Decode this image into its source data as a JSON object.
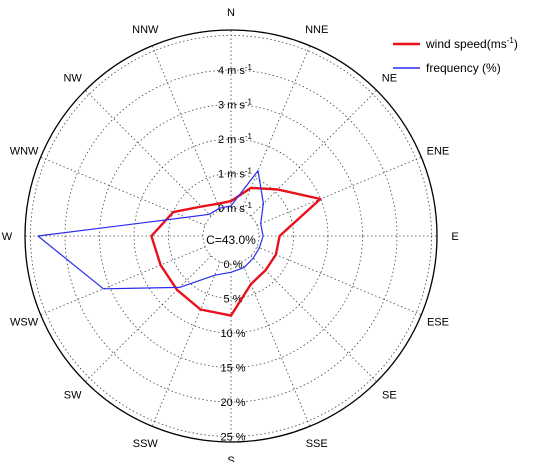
{
  "chart_data": {
    "type": "polar-rose",
    "directions": [
      "N",
      "NNE",
      "NE",
      "ENE",
      "E",
      "ESE",
      "SE",
      "SSE",
      "S",
      "SSW",
      "SW",
      "WSW",
      "W",
      "WNW",
      "NW",
      "NNW"
    ],
    "calm_label": "C=43.0%",
    "speed_ticks": [
      "0 m s-1",
      "1 m s-1",
      "2 m s-1",
      "3 m s-1",
      "4 m s-1"
    ],
    "frequency_ticks": [
      "0 %",
      "5 %",
      "10 %",
      "15 %",
      "20 %",
      "25 %"
    ],
    "series": [
      {
        "name": "wind speed(ms-1)",
        "color": "#e8101b",
        "unit": "m s-1",
        "values": [
          0.2,
          0.7,
          1.1,
          2.0,
          0.6,
          0.6,
          0.6,
          0.7,
          1.5,
          1.5,
          1.4,
          1.4,
          1.5,
          1.0,
          0.4,
          0.2
        ]
      },
      {
        "name": "frequency (%)",
        "color": "#2a2cf0",
        "unit": "%",
        "values": [
          0.3,
          6.2,
          2.6,
          0.6,
          0.6,
          0.4,
          0.5,
          0.9,
          1.2,
          2.1,
          6.5,
          16.0,
          24.0,
          3.0,
          0.4,
          0.3
        ]
      }
    ],
    "speed_range": [
      0,
      5
    ],
    "frequency_range": [
      0,
      25
    ],
    "legend_position": "top-right",
    "grid": true
  },
  "legend": {
    "speed_label": "wind speed(ms",
    "speed_sup": "-1",
    "speed_close": ")",
    "freq_label": "frequency (%)"
  }
}
